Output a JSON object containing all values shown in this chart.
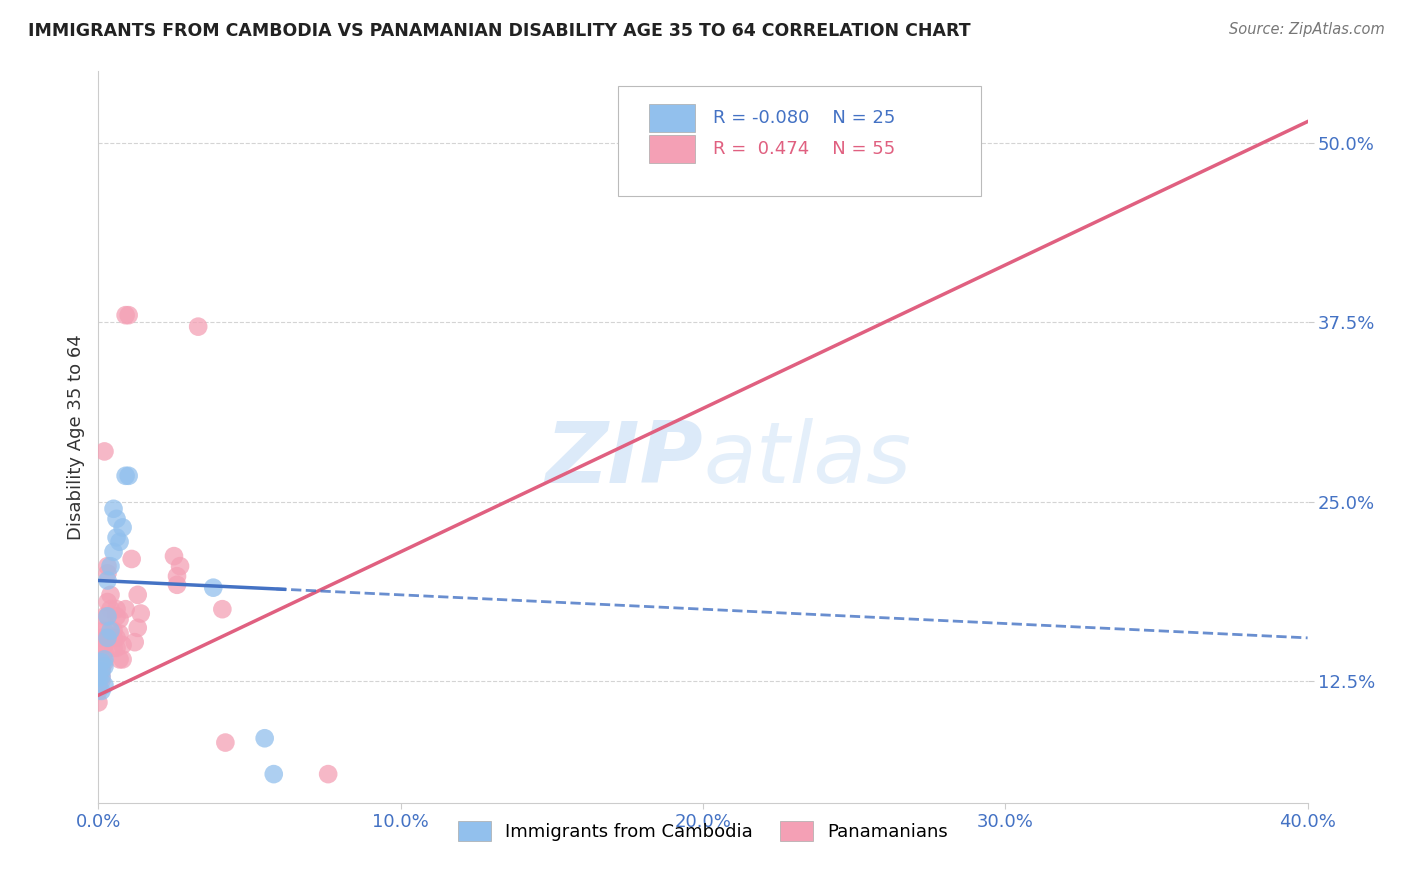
{
  "title": "IMMIGRANTS FROM CAMBODIA VS PANAMANIAN DISABILITY AGE 35 TO 64 CORRELATION CHART",
  "source": "Source: ZipAtlas.com",
  "xlabel_ticks": [
    "0.0%",
    "10.0%",
    "20.0%",
    "30.0%",
    "40.0%"
  ],
  "xlabel_tick_vals": [
    0.0,
    0.1,
    0.2,
    0.3,
    0.4
  ],
  "ylabel": "Disability Age 35 to 64",
  "ylabel_ticks": [
    "12.5%",
    "25.0%",
    "37.5%",
    "50.0%"
  ],
  "ylabel_tick_vals": [
    0.125,
    0.25,
    0.375,
    0.5
  ],
  "xlim": [
    0.0,
    0.4
  ],
  "ylim": [
    0.04,
    0.55
  ],
  "watermark": "ZIPatlas",
  "legend_cambodia_label": "Immigrants from Cambodia",
  "legend_panama_label": "Panamanians",
  "cambodia_color": "#92C0ED",
  "panama_color": "#F4A0B5",
  "cambodia_line_color": "#4472C4",
  "panama_line_color": "#E06080",
  "cambodia_scatter": [
    [
      0.0,
      0.127
    ],
    [
      0.0,
      0.13
    ],
    [
      0.001,
      0.128
    ],
    [
      0.001,
      0.132
    ],
    [
      0.001,
      0.138
    ],
    [
      0.001,
      0.118
    ],
    [
      0.002,
      0.135
    ],
    [
      0.002,
      0.14
    ],
    [
      0.002,
      0.122
    ],
    [
      0.003,
      0.17
    ],
    [
      0.003,
      0.195
    ],
    [
      0.003,
      0.155
    ],
    [
      0.004,
      0.16
    ],
    [
      0.004,
      0.205
    ],
    [
      0.005,
      0.245
    ],
    [
      0.005,
      0.215
    ],
    [
      0.006,
      0.238
    ],
    [
      0.006,
      0.225
    ],
    [
      0.007,
      0.222
    ],
    [
      0.008,
      0.232
    ],
    [
      0.009,
      0.268
    ],
    [
      0.01,
      0.268
    ],
    [
      0.038,
      0.19
    ],
    [
      0.055,
      0.085
    ],
    [
      0.058,
      0.06
    ]
  ],
  "panama_scatter": [
    [
      0.0,
      0.127
    ],
    [
      0.0,
      0.13
    ],
    [
      0.0,
      0.12
    ],
    [
      0.0,
      0.118
    ],
    [
      0.0,
      0.122
    ],
    [
      0.0,
      0.11
    ],
    [
      0.001,
      0.125
    ],
    [
      0.001,
      0.14
    ],
    [
      0.001,
      0.135
    ],
    [
      0.001,
      0.155
    ],
    [
      0.001,
      0.16
    ],
    [
      0.001,
      0.148
    ],
    [
      0.001,
      0.132
    ],
    [
      0.001,
      0.128
    ],
    [
      0.002,
      0.16
    ],
    [
      0.002,
      0.17
    ],
    [
      0.002,
      0.15
    ],
    [
      0.002,
      0.145
    ],
    [
      0.002,
      0.138
    ],
    [
      0.002,
      0.285
    ],
    [
      0.003,
      0.205
    ],
    [
      0.003,
      0.18
    ],
    [
      0.003,
      0.155
    ],
    [
      0.003,
      0.2
    ],
    [
      0.003,
      0.17
    ],
    [
      0.004,
      0.185
    ],
    [
      0.004,
      0.175
    ],
    [
      0.005,
      0.155
    ],
    [
      0.005,
      0.16
    ],
    [
      0.005,
      0.148
    ],
    [
      0.006,
      0.17
    ],
    [
      0.006,
      0.175
    ],
    [
      0.006,
      0.155
    ],
    [
      0.006,
      0.148
    ],
    [
      0.007,
      0.168
    ],
    [
      0.007,
      0.158
    ],
    [
      0.007,
      0.14
    ],
    [
      0.008,
      0.14
    ],
    [
      0.008,
      0.15
    ],
    [
      0.009,
      0.175
    ],
    [
      0.009,
      0.38
    ],
    [
      0.01,
      0.38
    ],
    [
      0.011,
      0.21
    ],
    [
      0.012,
      0.152
    ],
    [
      0.013,
      0.185
    ],
    [
      0.013,
      0.162
    ],
    [
      0.014,
      0.172
    ],
    [
      0.025,
      0.212
    ],
    [
      0.026,
      0.192
    ],
    [
      0.026,
      0.198
    ],
    [
      0.027,
      0.205
    ],
    [
      0.033,
      0.372
    ],
    [
      0.041,
      0.175
    ],
    [
      0.042,
      0.082
    ],
    [
      0.076,
      0.06
    ]
  ],
  "cam_line_x0": 0.0,
  "cam_line_x1": 0.4,
  "pan_line_x0": 0.0,
  "pan_line_x1": 0.4,
  "background_color": "#ffffff",
  "grid_color": "#d0d0d0"
}
